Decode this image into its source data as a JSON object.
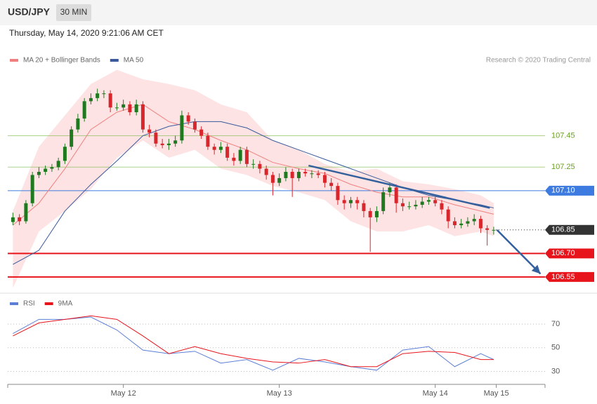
{
  "header": {
    "symbol": "USD/JPY",
    "interval": "30 MIN",
    "timestamp": "Thursday, May 14, 2020 9:21:06 AM CET"
  },
  "chart_data": [
    {
      "type": "candlestick",
      "credit": "Research © 2020 Trading Central",
      "up_color": "#1f7a1f",
      "down_color": "#d9262c",
      "x": [
        -17,
        -16,
        -15,
        -14,
        -13,
        -12,
        -11,
        -10,
        -9,
        -8,
        -7,
        -6,
        -5,
        -4,
        -3,
        -2,
        -1,
        0,
        1,
        2,
        3,
        4,
        5,
        6,
        7,
        8,
        9,
        10,
        11,
        12,
        13,
        14,
        15,
        16,
        17,
        18,
        19,
        20,
        21,
        22,
        23,
        24,
        25,
        26,
        27,
        28,
        29,
        30,
        31,
        32,
        33,
        34,
        35,
        36,
        37,
        38,
        39,
        40,
        41,
        42,
        43,
        44,
        45,
        46,
        47,
        48,
        49,
        50,
        51,
        52,
        53,
        54,
        55,
        56,
        57
      ],
      "open": [
        106.9,
        106.93,
        106.905,
        107.02,
        107.2,
        107.22,
        107.24,
        107.25,
        107.29,
        107.38,
        107.49,
        107.56,
        107.67,
        107.69,
        107.72,
        107.72,
        107.63,
        107.63,
        107.65,
        107.6,
        107.65,
        107.49,
        107.47,
        107.4,
        107.39,
        107.4,
        107.42,
        107.58,
        107.54,
        107.49,
        107.45,
        107.38,
        107.36,
        107.38,
        107.31,
        107.29,
        107.36,
        107.27,
        107.27,
        107.24,
        107.2,
        107.15,
        107.18,
        107.22,
        107.18,
        107.22,
        107.21,
        107.21,
        107.2,
        107.15,
        107.13,
        107.04,
        107.02,
        107.04,
        107.02,
        106.97,
        106.93,
        106.97,
        107.09,
        107.12,
        107.02,
        107.0,
        107.0,
        107.01,
        107.03,
        107.04,
        107.02,
        106.98,
        106.905,
        106.88,
        106.89,
        106.905,
        106.92,
        106.86,
        106.85
      ],
      "high": [
        106.96,
        106.95,
        107.04,
        107.22,
        107.25,
        107.26,
        107.27,
        107.31,
        107.4,
        107.51,
        107.59,
        107.69,
        107.72,
        107.75,
        107.74,
        107.74,
        107.66,
        107.68,
        107.67,
        107.68,
        107.67,
        107.52,
        107.49,
        107.43,
        107.43,
        107.45,
        107.61,
        107.6,
        107.56,
        107.51,
        107.47,
        107.4,
        107.41,
        107.4,
        107.34,
        107.38,
        107.38,
        107.3,
        107.29,
        107.26,
        107.22,
        107.21,
        107.25,
        107.24,
        107.24,
        107.24,
        107.23,
        107.23,
        107.22,
        107.18,
        107.15,
        107.07,
        107.06,
        107.06,
        107.04,
        106.99,
        107.0,
        107.12,
        107.15,
        107.14,
        107.05,
        107.03,
        107.04,
        107.06,
        107.06,
        107.06,
        107.04,
        107.0,
        106.93,
        106.92,
        106.93,
        106.95,
        106.94,
        106.88,
        106.87
      ],
      "low": [
        106.88,
        106.88,
        106.89,
        107.0,
        107.18,
        107.2,
        107.22,
        107.23,
        107.27,
        107.36,
        107.47,
        107.54,
        107.65,
        107.67,
        107.69,
        107.6,
        107.61,
        107.61,
        107.58,
        107.58,
        107.47,
        107.44,
        107.38,
        107.37,
        107.36,
        107.38,
        107.4,
        107.52,
        107.47,
        107.43,
        107.36,
        107.33,
        107.34,
        107.29,
        107.26,
        107.27,
        107.25,
        107.24,
        107.21,
        107.17,
        107.07,
        107.13,
        107.16,
        107.06,
        107.16,
        107.19,
        107.18,
        107.18,
        107.12,
        107.1,
        107.01,
        106.98,
        106.99,
        106.98,
        106.93,
        106.71,
        106.9,
        106.95,
        107.06,
        106.96,
        106.97,
        106.98,
        106.98,
        106.99,
        107.01,
        107.0,
        106.95,
        106.86,
        106.86,
        106.86,
        106.87,
        106.88,
        106.83,
        106.75,
        106.82
      ],
      "close": [
        106.93,
        106.905,
        107.02,
        107.2,
        107.22,
        107.24,
        107.25,
        107.29,
        107.38,
        107.49,
        107.56,
        107.67,
        107.69,
        107.72,
        107.72,
        107.63,
        107.63,
        107.65,
        107.6,
        107.65,
        107.49,
        107.47,
        107.4,
        107.39,
        107.4,
        107.42,
        107.58,
        107.54,
        107.49,
        107.45,
        107.38,
        107.36,
        107.38,
        107.31,
        107.29,
        107.36,
        107.27,
        107.27,
        107.24,
        107.2,
        107.15,
        107.18,
        107.22,
        107.18,
        107.22,
        107.21,
        107.21,
        107.2,
        107.15,
        107.13,
        107.04,
        107.02,
        107.04,
        107.02,
        106.97,
        106.93,
        106.97,
        107.09,
        107.12,
        107.02,
        107.0,
        107.0,
        107.01,
        107.03,
        107.04,
        107.02,
        106.98,
        106.905,
        106.88,
        106.89,
        106.905,
        106.92,
        106.86,
        106.85,
        106.85
      ],
      "series": [
        {
          "name": "MA 20 + Bollinger Bands",
          "color": "#f08080",
          "band_color": "#fde3e3",
          "x": [
            -17,
            -13,
            -9,
            -5,
            -1,
            3,
            7,
            11,
            15,
            19,
            23,
            27,
            31,
            35,
            39,
            43,
            47,
            51,
            55,
            57
          ],
          "values": [
            106.88,
            107.02,
            107.24,
            107.49,
            107.6,
            107.65,
            107.54,
            107.49,
            107.42,
            107.36,
            107.28,
            107.24,
            107.21,
            107.14,
            107.09,
            107.06,
            107.06,
            107.01,
            106.97,
            106.95
          ],
          "upper": [
            106.97,
            107.38,
            107.58,
            107.78,
            107.87,
            107.81,
            107.78,
            107.74,
            107.65,
            107.6,
            107.42,
            107.36,
            107.27,
            107.22,
            107.24,
            107.16,
            107.14,
            107.11,
            107.07,
            107.02
          ],
          "lower": [
            106.48,
            106.84,
            106.97,
            107.11,
            107.31,
            107.42,
            107.31,
            107.36,
            107.24,
            107.2,
            107.13,
            107.09,
            107.04,
            106.905,
            106.84,
            106.84,
            106.88,
            106.81,
            106.84,
            106.81
          ]
        },
        {
          "name": "MA 50",
          "color": "#3a5a9c",
          "x": [
            -17,
            -13,
            -9,
            -5,
            -1,
            3,
            7,
            11,
            15,
            19,
            23,
            27,
            31,
            35,
            39,
            43,
            47,
            51,
            55,
            57
          ],
          "values": [
            106.63,
            106.72,
            106.97,
            107.14,
            107.29,
            107.45,
            107.51,
            107.54,
            107.54,
            107.5,
            107.42,
            107.36,
            107.3,
            107.24,
            107.18,
            107.12,
            107.07,
            107.04,
            107.01,
            106.99
          ]
        }
      ],
      "annotations": [
        {
          "type": "trendline",
          "color": "#34609e",
          "x": [
            28.5,
            56.4
          ],
          "values": [
            107.26,
            106.99
          ]
        },
        {
          "type": "arrow",
          "color": "#34609e",
          "x": [
            57.5,
            64.2
          ],
          "values": [
            106.85,
            106.57
          ]
        }
      ],
      "xlim": [
        -17.8,
        64.9
      ],
      "ylim": [
        106.46,
        107.98
      ],
      "yticks": [
        107.45,
        107.25,
        {
          "value": 107.1,
          "label": "107.10"
        },
        106.85,
        {
          "value": 106.7,
          "label": "106.70"
        },
        106.55
      ],
      "ytick_colors": [
        "#8cbf5a",
        "#8cbf5a",
        "#3d7be0",
        "#333333",
        "#e8141b",
        "#e8141b"
      ],
      "ytick_box": [
        false,
        false,
        true,
        true,
        true,
        true
      ],
      "ytick_line": [
        "solid",
        "solid",
        "solid",
        "dotted",
        "solid",
        "solid"
      ]
    },
    {
      "type": "line",
      "x": [
        -17,
        -13,
        -9,
        -5,
        -1,
        3,
        7,
        11,
        15,
        19,
        23,
        27,
        31,
        35,
        39,
        43,
        47,
        51,
        55,
        57
      ],
      "series": [
        {
          "name": "RSI",
          "color": "#5b7fd6",
          "values": [
            62,
            74,
            74,
            76,
            65,
            48,
            45,
            47,
            37,
            40,
            31,
            41,
            38,
            34,
            31,
            48,
            51,
            34,
            45,
            40
          ]
        },
        {
          "name": "9MA",
          "color": "#e8141b",
          "values": [
            60,
            71,
            74,
            77,
            74,
            60,
            45,
            51,
            45,
            41,
            38,
            37,
            40,
            34,
            34,
            45,
            47,
            46,
            40,
            40
          ]
        }
      ],
      "xlim": [
        -17.8,
        64.9
      ],
      "ylim": [
        19,
        95
      ],
      "yticks": [
        70,
        50,
        30
      ],
      "grid": true,
      "xticks": [
        {
          "value": 0,
          "label": "May 12"
        },
        {
          "value": 24,
          "label": "May 13"
        },
        {
          "value": 48,
          "label": "May 14"
        },
        {
          "value": 57.4,
          "label": "May 15"
        }
      ]
    }
  ]
}
